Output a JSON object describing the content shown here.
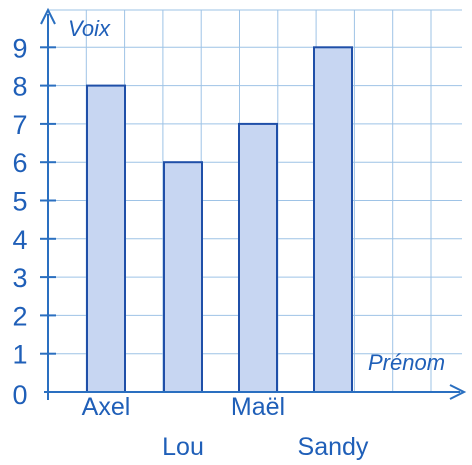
{
  "chart_data": {
    "type": "bar",
    "categories": [
      "Axel",
      "Lou",
      "Maël",
      "Sandy"
    ],
    "values": [
      8,
      6,
      7,
      9
    ],
    "xlabel": "Prénom",
    "ylabel": "Voix",
    "ylim": [
      0,
      9
    ],
    "y_ticks": [
      "0",
      "1",
      "2",
      "3",
      "4",
      "5",
      "6",
      "7",
      "8",
      "9"
    ],
    "grid": true,
    "colors": {
      "bar_fill": "#c7d6f2",
      "bar_stroke": "#1f4fa8",
      "grid": "#9ec3e6",
      "axis": "#2a6fc0",
      "text": "#1f5fb8"
    }
  }
}
